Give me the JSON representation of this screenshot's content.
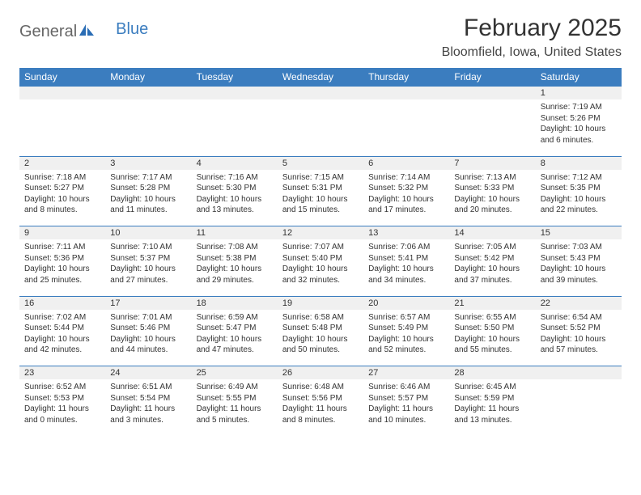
{
  "logo": {
    "part1": "General",
    "part2": "Blue"
  },
  "title": "February 2025",
  "location": "Bloomfield, Iowa, United States",
  "colors": {
    "header_bg": "#3b7dbf",
    "header_text": "#ffffff",
    "daynum_bg": "#f0f0f0",
    "row_border": "#3b7dbf",
    "page_bg": "#ffffff",
    "body_text": "#333333"
  },
  "day_headers": [
    "Sunday",
    "Monday",
    "Tuesday",
    "Wednesday",
    "Thursday",
    "Friday",
    "Saturday"
  ],
  "first_day_index": 6,
  "num_days": 28,
  "days": {
    "1": {
      "sunrise": "7:19 AM",
      "sunset": "5:26 PM",
      "daylight": "10 hours and 6 minutes."
    },
    "2": {
      "sunrise": "7:18 AM",
      "sunset": "5:27 PM",
      "daylight": "10 hours and 8 minutes."
    },
    "3": {
      "sunrise": "7:17 AM",
      "sunset": "5:28 PM",
      "daylight": "10 hours and 11 minutes."
    },
    "4": {
      "sunrise": "7:16 AM",
      "sunset": "5:30 PM",
      "daylight": "10 hours and 13 minutes."
    },
    "5": {
      "sunrise": "7:15 AM",
      "sunset": "5:31 PM",
      "daylight": "10 hours and 15 minutes."
    },
    "6": {
      "sunrise": "7:14 AM",
      "sunset": "5:32 PM",
      "daylight": "10 hours and 17 minutes."
    },
    "7": {
      "sunrise": "7:13 AM",
      "sunset": "5:33 PM",
      "daylight": "10 hours and 20 minutes."
    },
    "8": {
      "sunrise": "7:12 AM",
      "sunset": "5:35 PM",
      "daylight": "10 hours and 22 minutes."
    },
    "9": {
      "sunrise": "7:11 AM",
      "sunset": "5:36 PM",
      "daylight": "10 hours and 25 minutes."
    },
    "10": {
      "sunrise": "7:10 AM",
      "sunset": "5:37 PM",
      "daylight": "10 hours and 27 minutes."
    },
    "11": {
      "sunrise": "7:08 AM",
      "sunset": "5:38 PM",
      "daylight": "10 hours and 29 minutes."
    },
    "12": {
      "sunrise": "7:07 AM",
      "sunset": "5:40 PM",
      "daylight": "10 hours and 32 minutes."
    },
    "13": {
      "sunrise": "7:06 AM",
      "sunset": "5:41 PM",
      "daylight": "10 hours and 34 minutes."
    },
    "14": {
      "sunrise": "7:05 AM",
      "sunset": "5:42 PM",
      "daylight": "10 hours and 37 minutes."
    },
    "15": {
      "sunrise": "7:03 AM",
      "sunset": "5:43 PM",
      "daylight": "10 hours and 39 minutes."
    },
    "16": {
      "sunrise": "7:02 AM",
      "sunset": "5:44 PM",
      "daylight": "10 hours and 42 minutes."
    },
    "17": {
      "sunrise": "7:01 AM",
      "sunset": "5:46 PM",
      "daylight": "10 hours and 44 minutes."
    },
    "18": {
      "sunrise": "6:59 AM",
      "sunset": "5:47 PM",
      "daylight": "10 hours and 47 minutes."
    },
    "19": {
      "sunrise": "6:58 AM",
      "sunset": "5:48 PM",
      "daylight": "10 hours and 50 minutes."
    },
    "20": {
      "sunrise": "6:57 AM",
      "sunset": "5:49 PM",
      "daylight": "10 hours and 52 minutes."
    },
    "21": {
      "sunrise": "6:55 AM",
      "sunset": "5:50 PM",
      "daylight": "10 hours and 55 minutes."
    },
    "22": {
      "sunrise": "6:54 AM",
      "sunset": "5:52 PM",
      "daylight": "10 hours and 57 minutes."
    },
    "23": {
      "sunrise": "6:52 AM",
      "sunset": "5:53 PM",
      "daylight": "11 hours and 0 minutes."
    },
    "24": {
      "sunrise": "6:51 AM",
      "sunset": "5:54 PM",
      "daylight": "11 hours and 3 minutes."
    },
    "25": {
      "sunrise": "6:49 AM",
      "sunset": "5:55 PM",
      "daylight": "11 hours and 5 minutes."
    },
    "26": {
      "sunrise": "6:48 AM",
      "sunset": "5:56 PM",
      "daylight": "11 hours and 8 minutes."
    },
    "27": {
      "sunrise": "6:46 AM",
      "sunset": "5:57 PM",
      "daylight": "11 hours and 10 minutes."
    },
    "28": {
      "sunrise": "6:45 AM",
      "sunset": "5:59 PM",
      "daylight": "11 hours and 13 minutes."
    }
  },
  "labels": {
    "sunrise": "Sunrise:",
    "sunset": "Sunset:",
    "daylight": "Daylight:"
  }
}
